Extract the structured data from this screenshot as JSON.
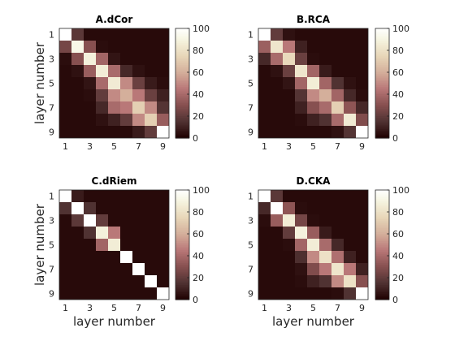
{
  "colormap": {
    "name": "pink",
    "vmin": 0,
    "vmax": 100
  },
  "colorbar": {
    "ticks": [
      "0",
      "20",
      "40",
      "60",
      "80",
      "100"
    ]
  },
  "chart_data": [
    {
      "type": "heatmap",
      "title": "A.dCor",
      "xlabel": "",
      "ylabel": "layer number",
      "xticks": [
        "1",
        "3",
        "5",
        "7",
        "9"
      ],
      "yticks": [
        "1",
        "3",
        "5",
        "7",
        "9"
      ],
      "values": [
        [
          100,
          18,
          3,
          3,
          3,
          3,
          3,
          3,
          3
        ],
        [
          25,
          92,
          30,
          4,
          3,
          3,
          3,
          3,
          3
        ],
        [
          4,
          30,
          88,
          38,
          6,
          3,
          3,
          3,
          3
        ],
        [
          3,
          5,
          35,
          86,
          40,
          12,
          5,
          3,
          3
        ],
        [
          3,
          3,
          6,
          40,
          85,
          50,
          22,
          8,
          4
        ],
        [
          3,
          3,
          4,
          20,
          50,
          60,
          45,
          22,
          10
        ],
        [
          3,
          3,
          3,
          12,
          40,
          45,
          72,
          50,
          16
        ],
        [
          3,
          3,
          3,
          5,
          10,
          20,
          50,
          72,
          35
        ],
        [
          3,
          3,
          3,
          3,
          3,
          3,
          8,
          20,
          100
        ]
      ]
    },
    {
      "type": "heatmap",
      "title": "B.RCA",
      "xlabel": "",
      "ylabel": "",
      "xticks": [
        "1",
        "3",
        "5",
        "7",
        "9"
      ],
      "yticks": [
        "1",
        "3",
        "5",
        "7",
        "9"
      ],
      "values": [
        [
          100,
          20,
          5,
          3,
          3,
          3,
          3,
          3,
          3
        ],
        [
          36,
          82,
          45,
          10,
          3,
          3,
          3,
          3,
          3
        ],
        [
          12,
          40,
          76,
          22,
          4,
          3,
          3,
          3,
          3
        ],
        [
          3,
          5,
          22,
          82,
          38,
          8,
          3,
          3,
          3
        ],
        [
          3,
          3,
          6,
          38,
          86,
          38,
          15,
          5,
          3
        ],
        [
          3,
          3,
          3,
          16,
          50,
          60,
          38,
          12,
          4
        ],
        [
          3,
          3,
          3,
          10,
          30,
          40,
          72,
          32,
          12
        ],
        [
          3,
          3,
          3,
          4,
          10,
          15,
          40,
          85,
          28
        ],
        [
          3,
          3,
          3,
          3,
          3,
          3,
          5,
          16,
          100
        ]
      ]
    },
    {
      "type": "heatmap",
      "title": "C.dRiem",
      "xlabel": "layer number",
      "ylabel": "layer number",
      "xticks": [
        "1",
        "3",
        "5",
        "7",
        "9"
      ],
      "yticks": [
        "1",
        "3",
        "5",
        "7",
        "9"
      ],
      "values": [
        [
          100,
          8,
          3,
          3,
          3,
          3,
          3,
          3,
          3
        ],
        [
          15,
          100,
          15,
          3,
          3,
          3,
          3,
          3,
          3
        ],
        [
          3,
          18,
          100,
          20,
          3,
          3,
          3,
          3,
          3
        ],
        [
          3,
          3,
          15,
          88,
          45,
          3,
          3,
          3,
          3
        ],
        [
          3,
          3,
          3,
          38,
          86,
          3,
          3,
          3,
          3
        ],
        [
          3,
          3,
          3,
          3,
          3,
          100,
          3,
          3,
          3
        ],
        [
          3,
          3,
          3,
          3,
          3,
          3,
          100,
          3,
          3
        ],
        [
          3,
          3,
          3,
          3,
          3,
          3,
          3,
          100,
          3
        ],
        [
          3,
          3,
          3,
          3,
          3,
          3,
          3,
          3,
          100
        ]
      ]
    },
    {
      "type": "heatmap",
      "title": "D.CKA",
      "xlabel": "layer number",
      "ylabel": "",
      "xticks": [
        "1",
        "3",
        "5",
        "7",
        "9"
      ],
      "yticks": [
        "1",
        "3",
        "5",
        "7",
        "9"
      ],
      "values": [
        [
          100,
          18,
          3,
          3,
          3,
          3,
          3,
          3,
          3
        ],
        [
          12,
          100,
          32,
          4,
          3,
          3,
          3,
          3,
          3
        ],
        [
          4,
          35,
          86,
          25,
          4,
          3,
          3,
          3,
          3
        ],
        [
          3,
          3,
          20,
          88,
          35,
          8,
          3,
          3,
          3
        ],
        [
          3,
          3,
          4,
          38,
          86,
          40,
          12,
          3,
          3
        ],
        [
          3,
          3,
          3,
          14,
          50,
          80,
          42,
          10,
          3
        ],
        [
          3,
          3,
          3,
          5,
          28,
          45,
          82,
          45,
          10
        ],
        [
          3,
          3,
          3,
          4,
          10,
          15,
          50,
          80,
          30
        ],
        [
          3,
          3,
          3,
          3,
          3,
          3,
          4,
          15,
          100
        ]
      ]
    }
  ]
}
